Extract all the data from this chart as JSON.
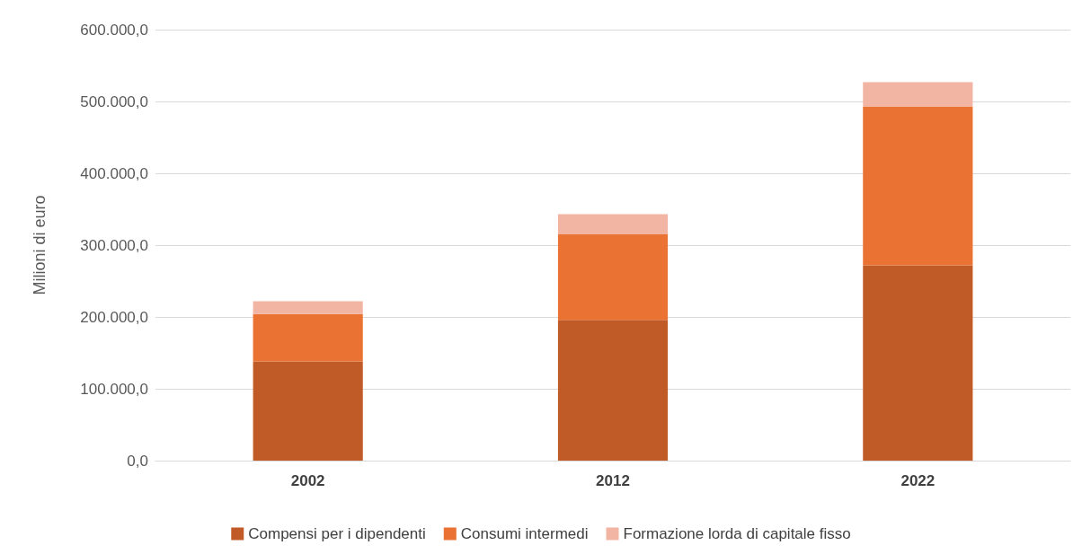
{
  "chart_data": {
    "type": "bar",
    "stacked": true,
    "ylabel": "Milioni di euro",
    "categories": [
      "2002",
      "2012",
      "2022"
    ],
    "series": [
      {
        "name": "Compensi per i dipendenti",
        "color": "#c05b27",
        "values": [
          138000,
          196000,
          272000
        ]
      },
      {
        "name": "Consumi intermedi",
        "color": "#ea7232",
        "values": [
          66000,
          119000,
          221000
        ]
      },
      {
        "name": "Formazione lorda di capitale fisso",
        "color": "#f2b5a3",
        "values": [
          18000,
          28000,
          34000
        ]
      }
    ],
    "ylim": [
      0,
      600000
    ],
    "yticks": [
      {
        "value": 0,
        "label": "0,0"
      },
      {
        "value": 100000,
        "label": "100.000,0"
      },
      {
        "value": 200000,
        "label": "200.000,0"
      },
      {
        "value": 300000,
        "label": "300.000,0"
      },
      {
        "value": 400000,
        "label": "400.000,0"
      },
      {
        "value": 500000,
        "label": "500.000,0"
      },
      {
        "value": 600000,
        "label": "600.000,0"
      }
    ],
    "grid": "y",
    "legend": "bottom"
  }
}
